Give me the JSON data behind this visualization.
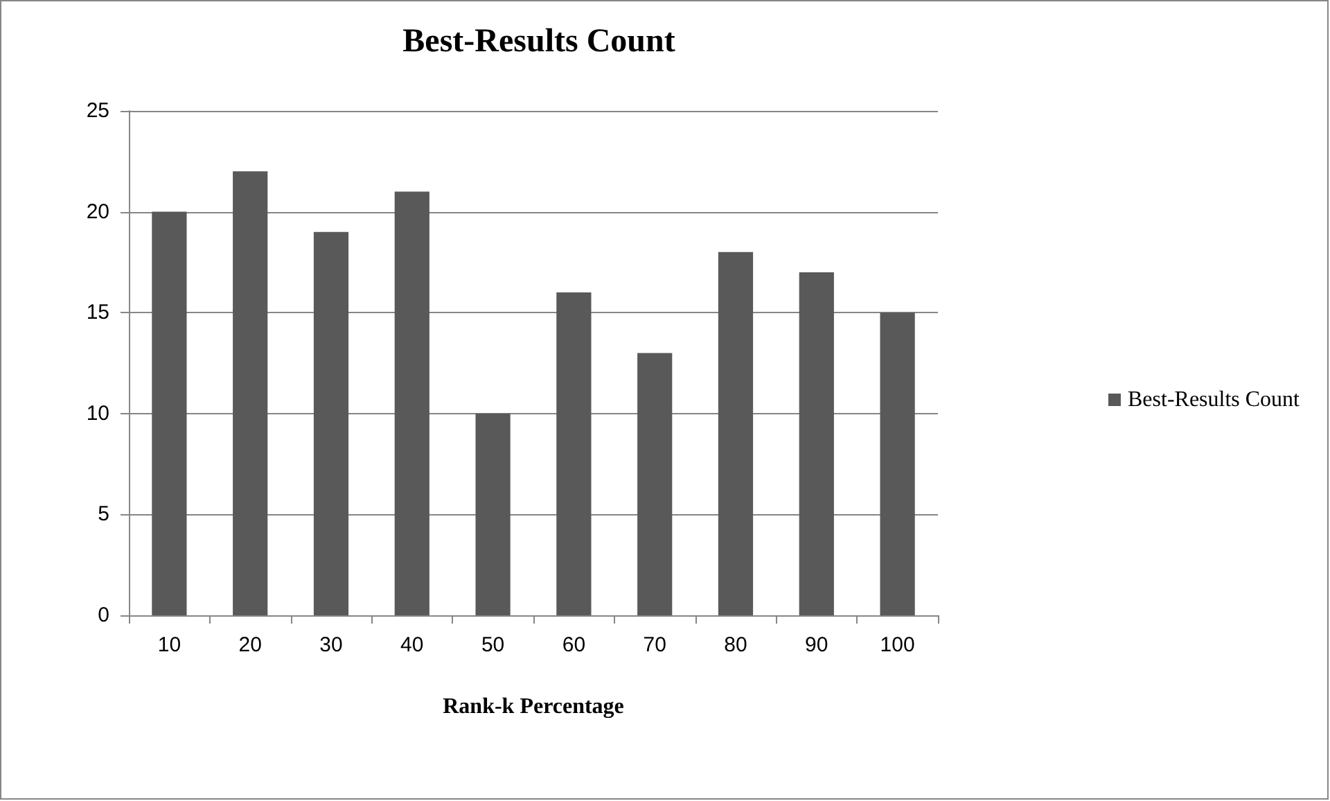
{
  "chart_data": {
    "type": "bar",
    "title": "Best-Results Count",
    "xlabel": "Rank-k Percentage",
    "categories": [
      "10",
      "20",
      "30",
      "40",
      "50",
      "60",
      "70",
      "80",
      "90",
      "100"
    ],
    "series": [
      {
        "name": "Best-Results Count",
        "color": "#595959",
        "values": [
          20,
          22,
          19,
          21,
          10,
          16,
          13,
          18,
          17,
          15
        ]
      }
    ],
    "ylim": [
      0,
      25
    ],
    "yticks": [
      0,
      5,
      10,
      15,
      20,
      25
    ],
    "grid": "y",
    "legend": "right"
  }
}
